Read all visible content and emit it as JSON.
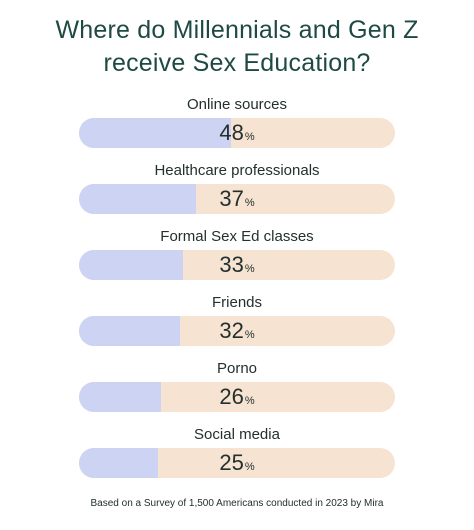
{
  "title_lines": [
    "Where do Millennials and Gen Z",
    "receive Sex Education?"
  ],
  "footer": "Based on a Survey of 1,500 Americans conducted in 2023 by Mira",
  "colors": {
    "fill": "#cdd3f3",
    "track": "#f6e3d2",
    "title": "#1e4a43"
  },
  "chart_data": {
    "type": "bar",
    "orientation": "horizontal",
    "title": "Where do Millennials and Gen Z receive Sex Education?",
    "categories": [
      "Online sources",
      "Healthcare professionals",
      "Formal Sex Ed classes",
      "Friends",
      "Porno",
      "Social media"
    ],
    "values": [
      48,
      37,
      33,
      32,
      26,
      25
    ],
    "unit": "%",
    "xlim": [
      0,
      100
    ],
    "grid": false,
    "legend": "none"
  }
}
